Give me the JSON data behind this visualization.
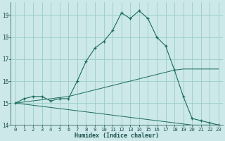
{
  "xlabel": "Humidex (Indice chaleur)",
  "bg_color": "#cce8e8",
  "grid_color": "#99cccc",
  "line_color": "#1a6b5a",
  "xlim": [
    -0.5,
    23.5
  ],
  "ylim": [
    14.0,
    19.6
  ],
  "yticks": [
    14,
    15,
    16,
    17,
    18,
    19
  ],
  "xticks": [
    0,
    1,
    2,
    3,
    4,
    5,
    6,
    7,
    8,
    9,
    10,
    11,
    12,
    13,
    14,
    15,
    16,
    17,
    18,
    19,
    20,
    21,
    22,
    23
  ],
  "line1_x": [
    0,
    1,
    2,
    3,
    4,
    5,
    6,
    7,
    8,
    9,
    10,
    11,
    12,
    13,
    14,
    15,
    16,
    17,
    18,
    19,
    20,
    21,
    22,
    23
  ],
  "line1_y": [
    15.0,
    15.2,
    15.3,
    15.3,
    15.1,
    15.2,
    15.2,
    16.0,
    16.9,
    17.5,
    17.8,
    18.3,
    19.1,
    18.85,
    19.2,
    18.85,
    18.0,
    17.6,
    16.5,
    15.3,
    14.3,
    14.2,
    14.1,
    14.0
  ],
  "line2_x": [
    0,
    1,
    2,
    3,
    4,
    5,
    6,
    7,
    8,
    9,
    10,
    11,
    12,
    13,
    14,
    15,
    16,
    17,
    18,
    19,
    20,
    21,
    22,
    23
  ],
  "line2_y": [
    15.0,
    15.05,
    15.1,
    15.15,
    15.2,
    15.25,
    15.3,
    15.4,
    15.5,
    15.6,
    15.7,
    15.8,
    15.9,
    16.0,
    16.1,
    16.2,
    16.3,
    16.4,
    16.5,
    16.55,
    16.55,
    16.55,
    16.55,
    16.55
  ],
  "line3_x": [
    0,
    1,
    2,
    3,
    4,
    5,
    6,
    7,
    8,
    9,
    10,
    11,
    12,
    13,
    14,
    15,
    16,
    17,
    18,
    19,
    20,
    21,
    22,
    23
  ],
  "line3_y": [
    15.0,
    14.95,
    14.9,
    14.85,
    14.8,
    14.75,
    14.7,
    14.65,
    14.6,
    14.55,
    14.5,
    14.45,
    14.4,
    14.35,
    14.3,
    14.25,
    14.2,
    14.15,
    14.1,
    14.05,
    14.0,
    14.0,
    14.0,
    14.0
  ],
  "xlabel_fontsize": 6.0,
  "tick_fontsize": 5.2
}
